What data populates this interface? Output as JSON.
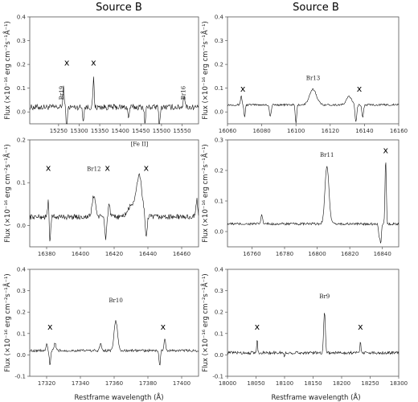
{
  "figure": {
    "column_titles": [
      "Source B",
      "Source B"
    ],
    "ylabel": "Flux (×10⁻¹⁶ erg cm⁻²s⁻¹Å⁻¹)",
    "xlabel": "Restframe wavelength (Å)"
  },
  "chart_data": [
    {
      "type": "line",
      "title": "Source B",
      "xlim": [
        15180,
        15590
      ],
      "ylim": [
        -0.05,
        0.4
      ],
      "xticks": [
        15250,
        15300,
        15350,
        15400,
        15450,
        15500,
        15550
      ],
      "yticks": [
        0.0,
        0.1,
        0.2,
        0.3,
        0.4
      ],
      "line_labels": [
        {
          "text": "Br19",
          "x": 15262,
          "y": 0.08
        },
        {
          "text": "Br16",
          "x": 15558,
          "y": 0.08
        }
      ],
      "telluric_marks": [
        {
          "x": 15270,
          "y": 0.195
        },
        {
          "x": 15335,
          "y": 0.195
        }
      ],
      "baseline": 0.02,
      "noise": 0.012,
      "features": [
        {
          "x": 15262,
          "amp": 0.09,
          "w": 1.5
        },
        {
          "x": 15270,
          "amp": -0.1,
          "w": 1.5
        },
        {
          "x": 15335,
          "amp": 0.12,
          "w": 1.5
        },
        {
          "x": 15310,
          "amp": -0.06,
          "w": 1.5
        },
        {
          "x": 15420,
          "amp": -0.05,
          "w": 1.5
        },
        {
          "x": 15460,
          "amp": -0.07,
          "w": 1.5
        },
        {
          "x": 15495,
          "amp": -0.08,
          "w": 1.5
        },
        {
          "x": 15555,
          "amp": 0.05,
          "w": 2.0
        }
      ],
      "show_xlabel": false
    },
    {
      "type": "line",
      "title": "Source B",
      "xlim": [
        16060,
        16160
      ],
      "ylim": [
        -0.05,
        0.4
      ],
      "xticks": [
        16060,
        16080,
        16100,
        16120,
        16140,
        16160
      ],
      "yticks": [
        0.0,
        0.1,
        0.2,
        0.3,
        0.4
      ],
      "line_labels": [
        {
          "text": "Br13",
          "x": 16110,
          "y": 0.135
        }
      ],
      "telluric_marks": [
        {
          "x": 16069,
          "y": 0.085
        },
        {
          "x": 16137,
          "y": 0.085
        }
      ],
      "baseline": 0.03,
      "noise": 0.004,
      "features": [
        {
          "x": 16068,
          "amp": 0.04,
          "w": 0.4
        },
        {
          "x": 16070,
          "amp": -0.05,
          "w": 0.4
        },
        {
          "x": 16085,
          "amp": -0.05,
          "w": 0.5
        },
        {
          "x": 16100,
          "amp": -0.08,
          "w": 0.4
        },
        {
          "x": 16110,
          "amp": 0.065,
          "w": 2.0
        },
        {
          "x": 16131,
          "amp": 0.035,
          "w": 1.5
        },
        {
          "x": 16135,
          "amp": -0.07,
          "w": 0.5
        },
        {
          "x": 16139,
          "amp": -0.05,
          "w": 0.5
        }
      ],
      "show_xlabel": false
    },
    {
      "type": "line",
      "xlim": [
        16370,
        16470
      ],
      "ylim": [
        -0.05,
        0.2
      ],
      "xticks": [
        16380,
        16400,
        16420,
        16440,
        16460
      ],
      "yticks": [
        0.0,
        0.1,
        0.2
      ],
      "line_labels": [
        {
          "text": "Br12",
          "x": 16408,
          "y": 0.128
        },
        {
          "text": "[Fe II]",
          "x": 16435,
          "y": 0.186
        }
      ],
      "telluric_marks": [
        {
          "x": 16381,
          "y": 0.128
        },
        {
          "x": 16416,
          "y": 0.128
        },
        {
          "x": 16439,
          "y": 0.128
        }
      ],
      "baseline": 0.02,
      "noise": 0.006,
      "features": [
        {
          "x": 16381,
          "amp": 0.04,
          "w": 0.4
        },
        {
          "x": 16382,
          "amp": -0.06,
          "w": 0.4
        },
        {
          "x": 16408,
          "amp": 0.05,
          "w": 1.0
        },
        {
          "x": 16415,
          "amp": -0.05,
          "w": 0.5
        },
        {
          "x": 16417,
          "amp": 0.03,
          "w": 0.5
        },
        {
          "x": 16431,
          "amp": 0.03,
          "w": 2.5
        },
        {
          "x": 16435,
          "amp": 0.09,
          "w": 1.5
        },
        {
          "x": 16439,
          "amp": -0.05,
          "w": 0.5
        },
        {
          "x": 16469,
          "amp": 0.04,
          "w": 0.5
        }
      ],
      "show_xlabel": false
    },
    {
      "type": "line",
      "xlim": [
        16745,
        16850
      ],
      "ylim": [
        -0.05,
        0.3
      ],
      "xticks": [
        16760,
        16780,
        16800,
        16820,
        16840
      ],
      "yticks": [
        0.0,
        0.1,
        0.2,
        0.3
      ],
      "line_labels": [
        {
          "text": "Br11",
          "x": 16806,
          "y": 0.245
        }
      ],
      "telluric_marks": [
        {
          "x": 16842,
          "y": 0.257
        }
      ],
      "baseline": 0.025,
      "noise": 0.004,
      "features": [
        {
          "x": 16766,
          "amp": 0.03,
          "w": 0.5
        },
        {
          "x": 16806,
          "amp": 0.19,
          "w": 1.2
        },
        {
          "x": 16839,
          "amp": -0.06,
          "w": 0.4
        },
        {
          "x": 16842,
          "amp": 0.21,
          "w": 0.4
        },
        {
          "x": 16838,
          "amp": -0.04,
          "w": 0.4
        }
      ],
      "show_xlabel": false
    },
    {
      "type": "line",
      "xlim": [
        17310,
        17410
      ],
      "ylim": [
        -0.1,
        0.4
      ],
      "xticks": [
        17320,
        17340,
        17360,
        17380,
        17400
      ],
      "yticks": [
        -0.1,
        0.0,
        0.1,
        0.2,
        0.3,
        0.4
      ],
      "line_labels": [
        {
          "text": "Br10",
          "x": 17361,
          "y": 0.245
        }
      ],
      "telluric_marks": [
        {
          "x": 17322,
          "y": 0.118
        },
        {
          "x": 17389,
          "y": 0.118
        }
      ],
      "baseline": 0.02,
      "noise": 0.006,
      "features": [
        {
          "x": 17320,
          "amp": 0.03,
          "w": 0.4
        },
        {
          "x": 17322,
          "amp": -0.07,
          "w": 0.4
        },
        {
          "x": 17325,
          "amp": 0.035,
          "w": 0.5
        },
        {
          "x": 17352,
          "amp": 0.03,
          "w": 0.6
        },
        {
          "x": 17361,
          "amp": 0.14,
          "w": 1.0
        },
        {
          "x": 17387,
          "amp": -0.07,
          "w": 0.4
        },
        {
          "x": 17390,
          "amp": 0.06,
          "w": 0.4
        }
      ],
      "show_xlabel": true
    },
    {
      "type": "line",
      "xlim": [
        18000,
        18300
      ],
      "ylim": [
        -0.1,
        0.4
      ],
      "xticks": [
        18000,
        18050,
        18100,
        18150,
        18200,
        18250,
        18300
      ],
      "yticks": [
        -0.1,
        0.0,
        0.1,
        0.2,
        0.3,
        0.4
      ],
      "line_labels": [
        {
          "text": "Br9",
          "x": 18170,
          "y": 0.265
        }
      ],
      "telluric_marks": [
        {
          "x": 18052,
          "y": 0.118
        },
        {
          "x": 18233,
          "y": 0.118
        }
      ],
      "baseline": 0.01,
      "noise": 0.007,
      "features": [
        {
          "x": 18052,
          "amp": 0.07,
          "w": 0.8
        },
        {
          "x": 18170,
          "amp": 0.19,
          "w": 1.5
        },
        {
          "x": 18233,
          "amp": 0.05,
          "w": 1.0
        },
        {
          "x": 18100,
          "amp": -0.02,
          "w": 1.0
        }
      ],
      "show_xlabel": true
    }
  ]
}
